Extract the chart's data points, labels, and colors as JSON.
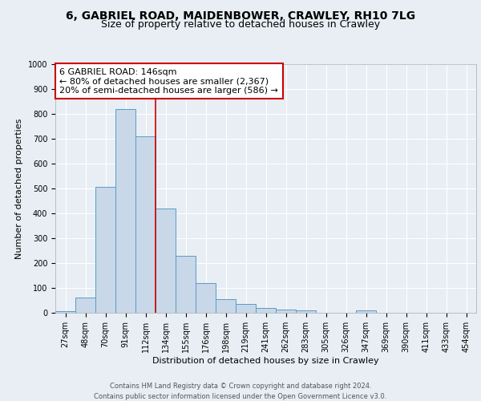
{
  "title1": "6, GABRIEL ROAD, MAIDENBOWER, CRAWLEY, RH10 7LG",
  "title2": "Size of property relative to detached houses in Crawley",
  "xlabel": "Distribution of detached houses by size in Crawley",
  "ylabel": "Number of detached properties",
  "categories": [
    "27sqm",
    "48sqm",
    "70sqm",
    "91sqm",
    "112sqm",
    "134sqm",
    "155sqm",
    "176sqm",
    "198sqm",
    "219sqm",
    "241sqm",
    "262sqm",
    "283sqm",
    "305sqm",
    "326sqm",
    "347sqm",
    "369sqm",
    "390sqm",
    "411sqm",
    "433sqm",
    "454sqm"
  ],
  "values": [
    8,
    60,
    505,
    820,
    710,
    418,
    230,
    120,
    55,
    35,
    18,
    12,
    10,
    0,
    0,
    10,
    0,
    0,
    0,
    0,
    0
  ],
  "bar_color": "#c8d8e8",
  "bar_edge_color": "#5a9ac8",
  "ylim": [
    0,
    1000
  ],
  "yticks": [
    0,
    100,
    200,
    300,
    400,
    500,
    600,
    700,
    800,
    900,
    1000
  ],
  "vline_index": 4.5,
  "annotation_line1": "6 GABRIEL ROAD: 146sqm",
  "annotation_line2": "← 80% of detached houses are smaller (2,367)",
  "annotation_line3": "20% of semi-detached houses are larger (586) →",
  "annotation_box_color": "#ffffff",
  "annotation_box_edge": "#cc0000",
  "vline_color": "#cc0000",
  "footer1": "Contains HM Land Registry data © Crown copyright and database right 2024.",
  "footer2": "Contains public sector information licensed under the Open Government Licence v3.0.",
  "background_color": "#e8eef4",
  "plot_background": "#e8eef4",
  "title1_fontsize": 10,
  "title2_fontsize": 9,
  "tick_fontsize": 7,
  "label_fontsize": 8,
  "annotation_fontsize": 8
}
